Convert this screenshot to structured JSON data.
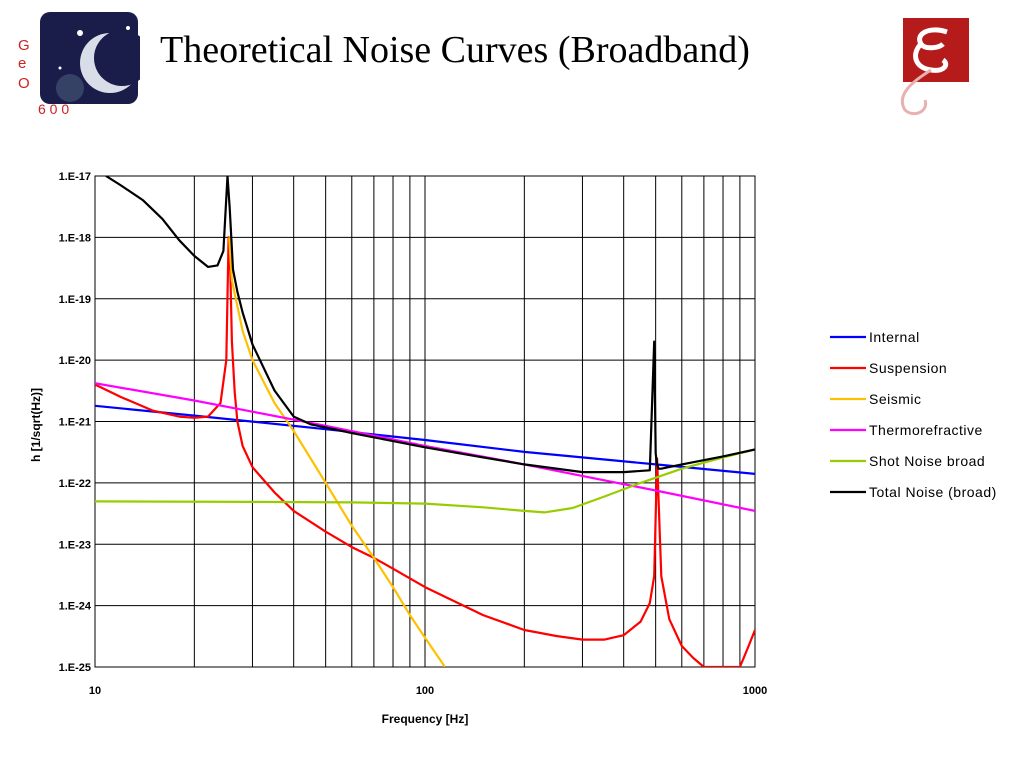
{
  "slide": {
    "title": "Theoretical Noise Curves (Broadband)",
    "logo_left_text": "GEO 600"
  },
  "chart_data": {
    "type": "line",
    "xlabel": "Frequency   [Hz]",
    "ylabel": "h   [1/sqrt(Hz)]",
    "x_scale": "log",
    "y_scale": "log",
    "xlim": [
      10,
      1000
    ],
    "ylim": [
      1e-25,
      1e-17
    ],
    "x_tick_labels": [
      "10",
      "100",
      "1000"
    ],
    "y_tick_labels": [
      "1.E-17",
      "1.E-18",
      "1.E-19",
      "1.E-20",
      "1.E-21",
      "1.E-22",
      "1.E-23",
      "1.E-24",
      "1.E-25"
    ],
    "grid": true,
    "legend_position": "right",
    "series": [
      {
        "name": "Internal",
        "color": "#0000ff",
        "x": [
          10,
          20,
          50,
          100,
          200,
          500,
          1000
        ],
        "y": [
          1.8e-21,
          1.25e-21,
          7.5e-22,
          5e-22,
          3.2e-22,
          2e-22,
          1.4e-22
        ]
      },
      {
        "name": "Suspension",
        "color": "#ff0000",
        "x": [
          10,
          12,
          15,
          18,
          20,
          22,
          24,
          25,
          25.4,
          25.7,
          26,
          26.5,
          27,
          28,
          30,
          35,
          40,
          50,
          60,
          70,
          80,
          100,
          150,
          200,
          250,
          300,
          350,
          400,
          450,
          480,
          495,
          505,
          520,
          550,
          600,
          650,
          700,
          900,
          950,
          1000
        ],
        "y": [
          4e-21,
          2.5e-21,
          1.5e-21,
          1.2e-21,
          1.15e-21,
          1.2e-21,
          2e-21,
          1e-20,
          1e-18,
          3e-19,
          2e-20,
          3e-21,
          1e-21,
          4e-22,
          1.8e-22,
          7e-23,
          3.5e-23,
          1.6e-23,
          9e-24,
          6e-24,
          4e-24,
          2e-24,
          7e-25,
          4e-25,
          3.2e-25,
          2.8e-25,
          2.8e-25,
          3.3e-25,
          5.5e-25,
          1.1e-24,
          3e-24,
          2.5e-22,
          3e-24,
          6e-25,
          2.2e-25,
          1.4e-25,
          1e-25,
          1e-25,
          2e-25,
          4e-25
        ]
      },
      {
        "name": "Seismic",
        "color": "#ffc000",
        "x": [
          25.5,
          26,
          28,
          30,
          35,
          40,
          50,
          60,
          70,
          80,
          90,
          100,
          115
        ],
        "y": [
          1e-18,
          2e-19,
          3e-20,
          1e-20,
          2e-21,
          7e-22,
          1e-22,
          2e-23,
          6e-24,
          2e-24,
          7e-25,
          3e-25,
          1e-25
        ]
      },
      {
        "name": "Thermorefractive",
        "color": "#ff00ff",
        "x": [
          10,
          20,
          50,
          100,
          200,
          500,
          1000
        ],
        "y": [
          4.2e-21,
          2.2e-21,
          8.5e-22,
          4e-22,
          2e-22,
          7.5e-23,
          3.5e-23
        ]
      },
      {
        "name": "Shot Noise broad",
        "color": "#99cc00",
        "x": [
          10,
          30,
          60,
          100,
          150,
          200,
          230,
          280,
          350,
          450,
          600,
          800,
          1000
        ],
        "y": [
          5e-23,
          4.9e-23,
          4.8e-23,
          4.6e-23,
          4e-23,
          3.5e-23,
          3.3e-23,
          3.9e-23,
          6e-23,
          1e-22,
          1.7e-22,
          2.6e-22,
          3.5e-22
        ]
      },
      {
        "name": "Total Noise (broad)",
        "color": "#000000",
        "x": [
          10.8,
          12,
          14,
          16,
          18,
          20,
          22,
          23.5,
          24.5,
          25.2,
          25.6,
          26.2,
          27,
          28,
          30,
          35,
          40,
          45,
          50,
          60,
          80,
          100,
          150,
          200,
          300,
          400,
          480,
          495,
          500,
          505,
          510,
          520,
          600,
          800,
          1000
        ],
        "y": [
          1e-17,
          7e-18,
          4e-18,
          2e-18,
          9e-19,
          5e-19,
          3.3e-19,
          3.5e-19,
          6e-19,
          1e-17,
          3e-18,
          3e-19,
          1.3e-19,
          6e-20,
          1.8e-20,
          3.2e-21,
          1.2e-21,
          9e-22,
          8e-22,
          6.5e-22,
          4.8e-22,
          3.8e-22,
          2.6e-22,
          2e-22,
          1.5e-22,
          1.5e-22,
          1.6e-22,
          2e-20,
          3e-22,
          2e-22,
          1.7e-22,
          1.7e-22,
          2e-22,
          2.7e-22,
          3.5e-22
        ]
      }
    ]
  }
}
